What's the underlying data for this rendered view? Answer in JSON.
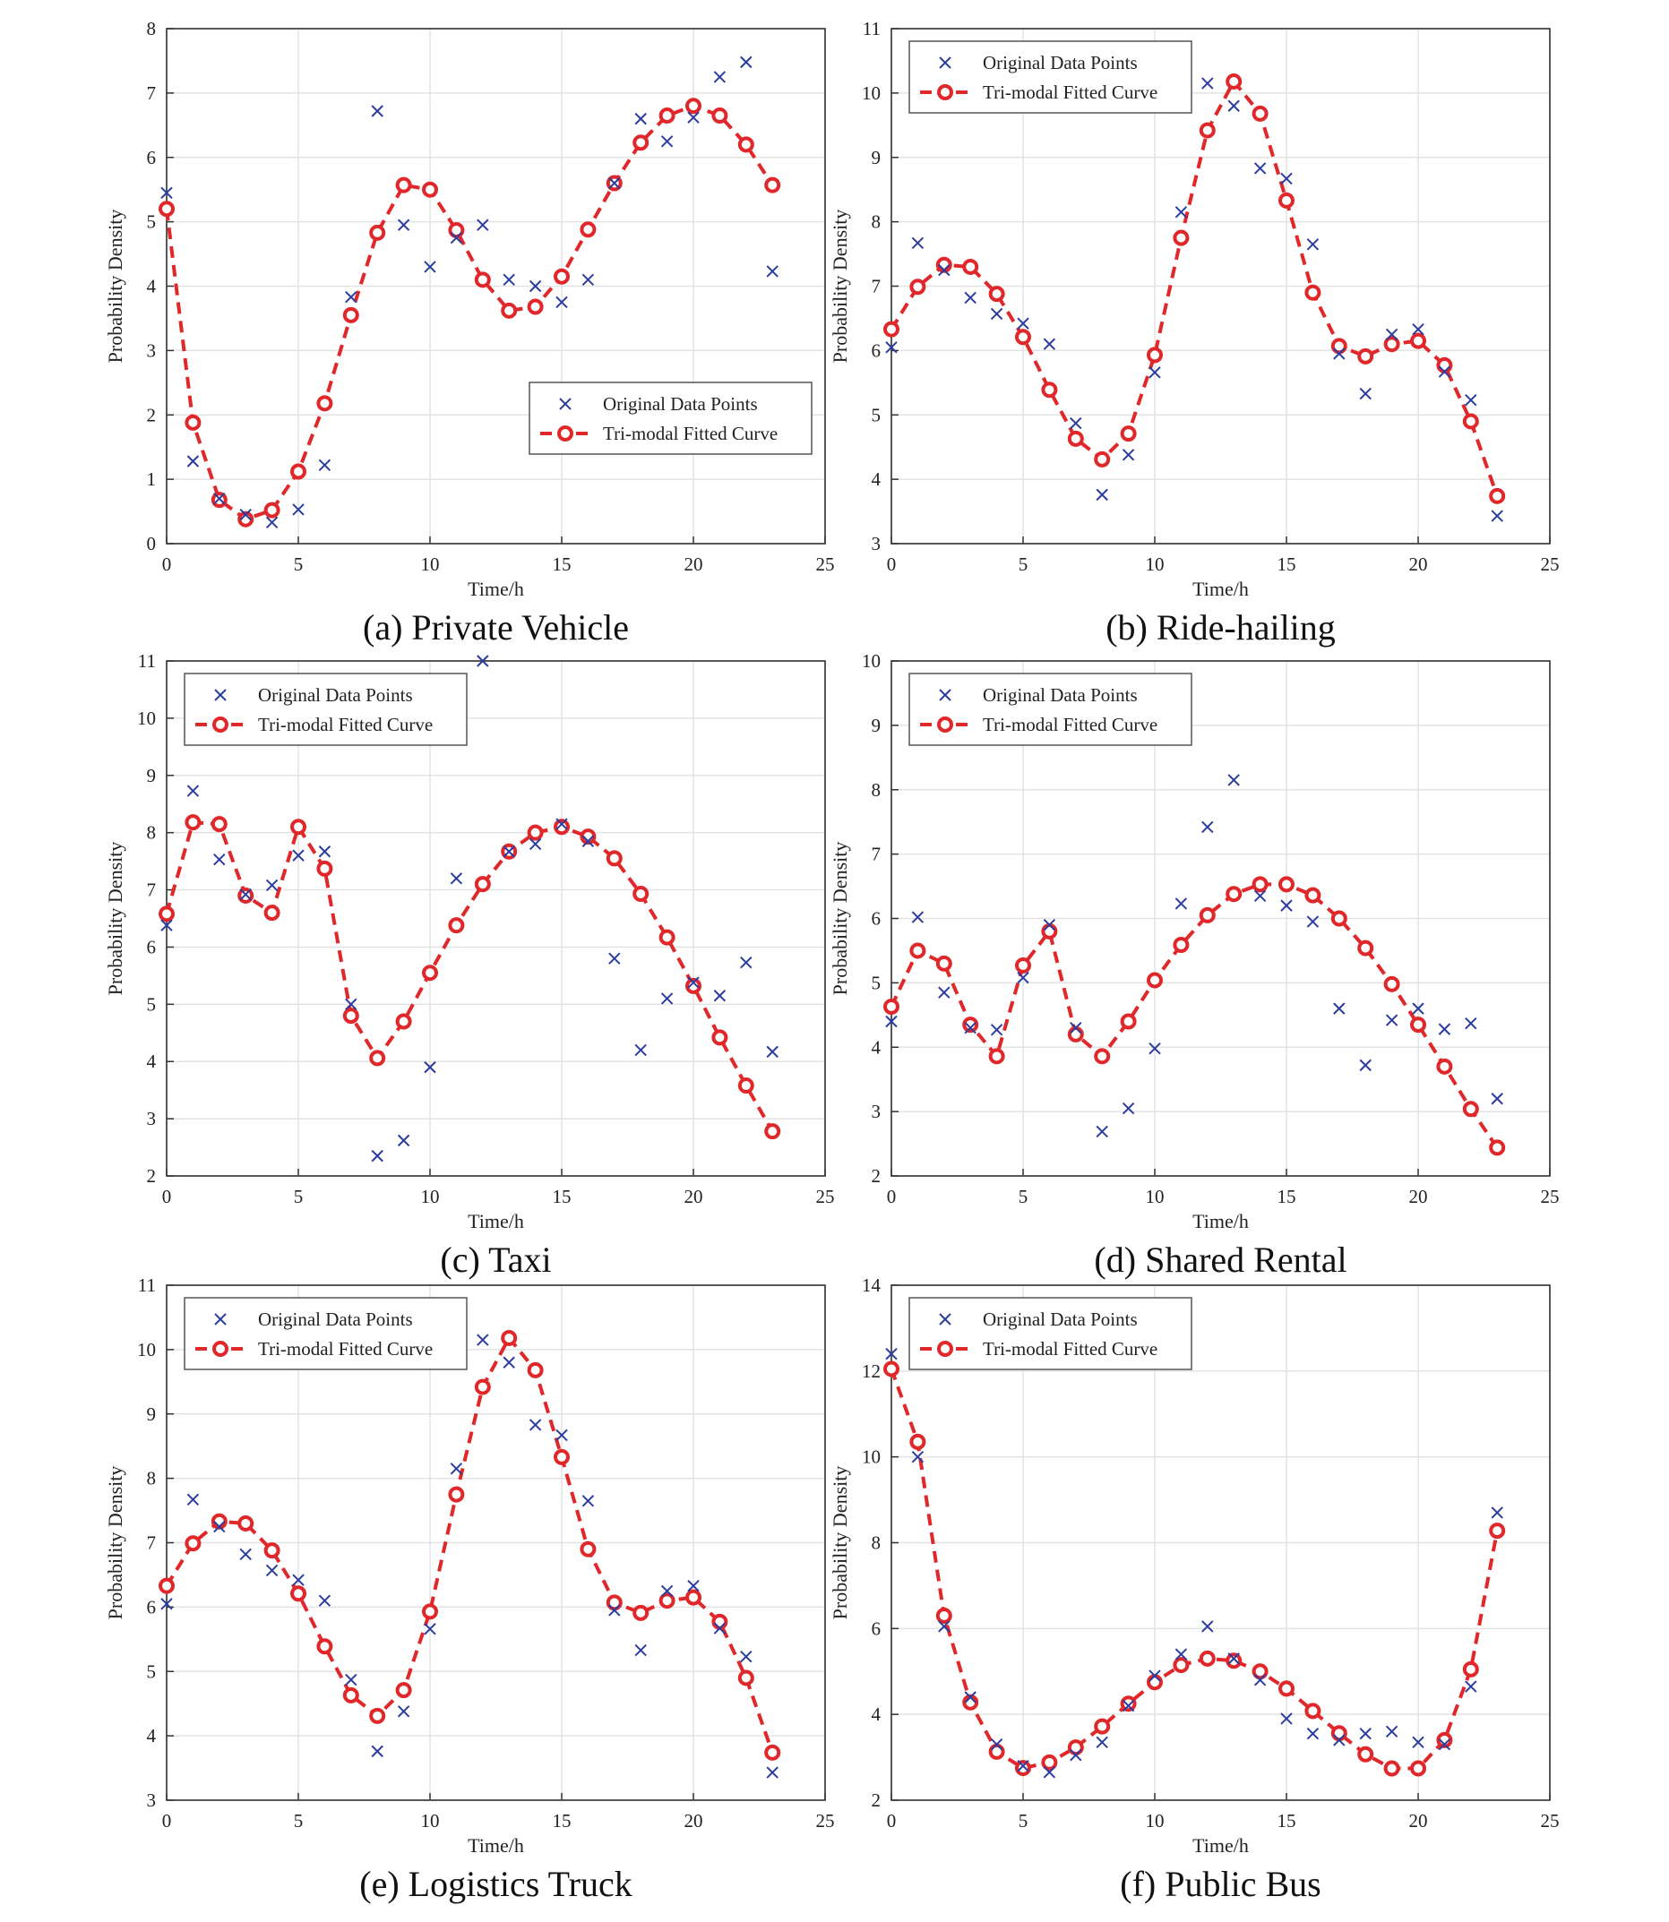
{
  "figure": {
    "colors": {
      "data_marker": "#2b3d9e",
      "fit_curve": "#e0272a",
      "grid": "#e3e3e3",
      "axes": "#333333"
    },
    "legend_labels": {
      "data": "Original Data Points",
      "fit": "Tri-modal Fitted Curve"
    }
  },
  "chart_data": [
    {
      "type": "scatter",
      "title": "(a) Private Vehicle",
      "xlabel": "Time/h",
      "ylabel": "Probability Density",
      "xlim": [
        0,
        25
      ],
      "ylim": [
        0,
        8
      ],
      "xticks": [
        "0",
        "5",
        "10",
        "15",
        "20",
        "25"
      ],
      "yticks": [
        "0",
        "1",
        "2",
        "3",
        "4",
        "5",
        "6",
        "7",
        "8"
      ],
      "grid": true,
      "legend_position": "bottom-right",
      "series": [
        {
          "name": "Original Data Points",
          "style": "x-marker",
          "x": [
            0,
            1,
            2,
            3,
            4,
            5,
            6,
            7,
            8,
            9,
            10,
            11,
            12,
            13,
            14,
            15,
            16,
            17,
            18,
            19,
            20,
            21,
            22,
            23
          ],
          "y": [
            5.45,
            1.28,
            0.7,
            0.45,
            0.33,
            0.53,
            1.22,
            3.83,
            6.72,
            4.95,
            4.3,
            4.75,
            4.95,
            4.1,
            4.0,
            3.75,
            4.1,
            5.6,
            6.6,
            6.25,
            6.62,
            7.25,
            7.48,
            4.23
          ]
        },
        {
          "name": "Tri-modal Fitted Curve",
          "style": "dashed-line-circle",
          "x": [
            0,
            1,
            2,
            3,
            4,
            5,
            6,
            7,
            8,
            9,
            10,
            11,
            12,
            13,
            14,
            15,
            16,
            17,
            18,
            19,
            20,
            21,
            22,
            23
          ],
          "y": [
            5.2,
            1.88,
            0.68,
            0.38,
            0.52,
            1.12,
            2.18,
            3.55,
            4.83,
            5.57,
            5.5,
            4.87,
            4.1,
            3.62,
            3.68,
            4.15,
            4.88,
            5.6,
            6.23,
            6.65,
            6.8,
            6.65,
            6.2,
            5.57
          ]
        }
      ]
    },
    {
      "type": "scatter",
      "title": "(b) Ride-hailing",
      "xlabel": "Time/h",
      "ylabel": "Probability Density",
      "xlim": [
        0,
        25
      ],
      "ylim": [
        3,
        11
      ],
      "xticks": [
        "0",
        "5",
        "10",
        "15",
        "20",
        "25"
      ],
      "yticks": [
        "3",
        "4",
        "5",
        "6",
        "7",
        "8",
        "9",
        "10",
        "11"
      ],
      "grid": true,
      "legend_position": "top-left",
      "series": [
        {
          "name": "Original Data Points",
          "style": "x-marker",
          "x": [
            0,
            1,
            2,
            3,
            4,
            5,
            6,
            7,
            8,
            9,
            10,
            11,
            12,
            13,
            14,
            15,
            16,
            17,
            18,
            19,
            20,
            21,
            22,
            23
          ],
          "y": [
            6.05,
            7.67,
            7.25,
            6.82,
            6.57,
            6.42,
            6.1,
            4.87,
            3.76,
            4.38,
            5.66,
            8.15,
            10.15,
            9.8,
            8.83,
            8.67,
            7.65,
            5.95,
            5.33,
            6.25,
            6.33,
            5.67,
            5.23,
            3.43
          ]
        },
        {
          "name": "Tri-modal Fitted Curve",
          "style": "dashed-line-circle",
          "x": [
            0,
            1,
            2,
            3,
            4,
            5,
            6,
            7,
            8,
            9,
            10,
            11,
            12,
            13,
            14,
            15,
            16,
            17,
            18,
            19,
            20,
            21,
            22,
            23
          ],
          "y": [
            6.33,
            6.99,
            7.33,
            7.3,
            6.88,
            6.21,
            5.39,
            4.63,
            4.31,
            4.71,
            5.93,
            7.75,
            9.42,
            10.18,
            9.68,
            8.33,
            6.9,
            6.07,
            5.91,
            6.1,
            6.15,
            5.77,
            4.9,
            3.74
          ]
        }
      ]
    },
    {
      "type": "scatter",
      "title": "(c) Taxi",
      "xlabel": "Time/h",
      "ylabel": "Probability Density",
      "xlim": [
        0,
        25
      ],
      "ylim": [
        2,
        11
      ],
      "xticks": [
        "0",
        "5",
        "10",
        "15",
        "20",
        "25"
      ],
      "yticks": [
        "2",
        "3",
        "4",
        "5",
        "6",
        "7",
        "8",
        "9",
        "10",
        "11"
      ],
      "grid": true,
      "legend_position": "top-left",
      "series": [
        {
          "name": "Original Data Points",
          "style": "x-marker",
          "x": [
            0,
            1,
            2,
            3,
            4,
            5,
            6,
            7,
            8,
            9,
            10,
            11,
            12,
            13,
            14,
            15,
            16,
            17,
            18,
            19,
            20,
            21,
            22,
            23
          ],
          "y": [
            6.38,
            8.73,
            7.53,
            6.92,
            7.08,
            7.6,
            7.67,
            5.0,
            2.35,
            2.62,
            3.9,
            7.2,
            11.0,
            7.67,
            7.8,
            8.15,
            7.85,
            5.8,
            4.2,
            5.1,
            5.38,
            5.15,
            5.73,
            4.17
          ]
        },
        {
          "name": "Tri-modal Fitted Curve",
          "style": "dashed-line-circle",
          "x": [
            0,
            1,
            2,
            3,
            4,
            5,
            6,
            7,
            8,
            9,
            10,
            11,
            12,
            13,
            14,
            15,
            16,
            17,
            18,
            19,
            20,
            21,
            22,
            23
          ],
          "y": [
            6.58,
            8.18,
            8.15,
            6.9,
            6.6,
            8.1,
            7.37,
            4.8,
            4.06,
            4.7,
            5.55,
            6.38,
            7.1,
            7.67,
            8.0,
            8.1,
            7.93,
            7.55,
            6.93,
            6.17,
            5.32,
            4.42,
            3.58,
            2.78
          ]
        }
      ]
    },
    {
      "type": "scatter",
      "title": "(d) Shared Rental",
      "xlabel": "Time/h",
      "ylabel": "Probability Density",
      "xlim": [
        0,
        25
      ],
      "ylim": [
        2,
        10
      ],
      "xticks": [
        "0",
        "5",
        "10",
        "15",
        "20",
        "25"
      ],
      "yticks": [
        "2",
        "3",
        "4",
        "5",
        "6",
        "7",
        "8",
        "9",
        "10"
      ],
      "grid": true,
      "legend_position": "top-left",
      "series": [
        {
          "name": "Original Data Points",
          "style": "x-marker",
          "x": [
            0,
            1,
            2,
            3,
            4,
            5,
            6,
            7,
            8,
            9,
            10,
            11,
            12,
            13,
            14,
            15,
            16,
            17,
            18,
            19,
            20,
            21,
            22,
            23
          ],
          "y": [
            4.4,
            6.02,
            4.85,
            4.3,
            4.27,
            5.08,
            5.9,
            4.3,
            2.69,
            3.05,
            3.98,
            6.23,
            7.42,
            8.15,
            6.35,
            6.2,
            5.95,
            4.6,
            3.72,
            4.42,
            4.6,
            4.28,
            4.37,
            3.2
          ]
        },
        {
          "name": "Tri-modal Fitted Curve",
          "style": "dashed-line-circle",
          "x": [
            0,
            1,
            2,
            3,
            4,
            5,
            6,
            7,
            8,
            9,
            10,
            11,
            12,
            13,
            14,
            15,
            16,
            17,
            18,
            19,
            20,
            21,
            22,
            23
          ],
          "y": [
            4.63,
            5.5,
            5.3,
            4.35,
            3.86,
            5.27,
            5.8,
            4.2,
            3.86,
            4.4,
            5.04,
            5.59,
            6.05,
            6.38,
            6.53,
            6.53,
            6.36,
            6.0,
            5.54,
            4.98,
            4.35,
            3.7,
            3.04,
            2.44
          ]
        }
      ]
    },
    {
      "type": "scatter",
      "title": "(e) Logistics Truck",
      "xlabel": "Time/h",
      "ylabel": "Probability Density",
      "xlim": [
        0,
        25
      ],
      "ylim": [
        3,
        11
      ],
      "xticks": [
        "0",
        "5",
        "10",
        "15",
        "20",
        "25"
      ],
      "yticks": [
        "3",
        "4",
        "5",
        "6",
        "7",
        "8",
        "9",
        "10",
        "11"
      ],
      "grid": true,
      "legend_position": "top-left",
      "series": [
        {
          "name": "Original Data Points",
          "style": "x-marker",
          "x": [
            0,
            1,
            2,
            3,
            4,
            5,
            6,
            7,
            8,
            9,
            10,
            11,
            12,
            13,
            14,
            15,
            16,
            17,
            18,
            19,
            20,
            21,
            22,
            23
          ],
          "y": [
            6.05,
            7.67,
            7.25,
            6.82,
            6.57,
            6.42,
            6.1,
            4.87,
            3.76,
            4.38,
            5.66,
            8.15,
            10.15,
            9.8,
            8.83,
            8.67,
            7.65,
            5.95,
            5.33,
            6.25,
            6.33,
            5.67,
            5.23,
            3.43
          ]
        },
        {
          "name": "Tri-modal Fitted Curve",
          "style": "dashed-line-circle",
          "x": [
            0,
            1,
            2,
            3,
            4,
            5,
            6,
            7,
            8,
            9,
            10,
            11,
            12,
            13,
            14,
            15,
            16,
            17,
            18,
            19,
            20,
            21,
            22,
            23
          ],
          "y": [
            6.33,
            6.99,
            7.33,
            7.3,
            6.88,
            6.21,
            5.39,
            4.63,
            4.31,
            4.71,
            5.93,
            7.75,
            9.42,
            10.18,
            9.68,
            8.33,
            6.9,
            6.07,
            5.91,
            6.1,
            6.15,
            5.77,
            4.9,
            3.74
          ]
        }
      ]
    },
    {
      "type": "scatter",
      "title": "(f) Public Bus",
      "xlabel": "Time/h",
      "ylabel": "Probability Density",
      "xlim": [
        0,
        25
      ],
      "ylim": [
        2,
        14
      ],
      "xticks": [
        "0",
        "5",
        "10",
        "15",
        "20",
        "25"
      ],
      "yticks": [
        "2",
        "4",
        "6",
        "8",
        "10",
        "12",
        "14"
      ],
      "grid": true,
      "legend_position": "top-left",
      "series": [
        {
          "name": "Original Data Points",
          "style": "x-marker",
          "x": [
            0,
            1,
            2,
            3,
            4,
            5,
            6,
            7,
            8,
            9,
            10,
            11,
            12,
            13,
            14,
            15,
            16,
            17,
            18,
            19,
            20,
            21,
            22,
            23
          ],
          "y": [
            12.4,
            10.0,
            6.05,
            4.4,
            3.3,
            2.8,
            2.65,
            3.05,
            3.35,
            4.2,
            4.9,
            5.4,
            6.05,
            5.3,
            4.8,
            3.9,
            3.55,
            3.4,
            3.55,
            3.6,
            3.35,
            3.3,
            4.65,
            8.7
          ]
        },
        {
          "name": "Tri-modal Fitted Curve",
          "style": "dashed-line-circle",
          "x": [
            0,
            1,
            2,
            3,
            4,
            5,
            6,
            7,
            8,
            9,
            10,
            11,
            12,
            13,
            14,
            15,
            16,
            17,
            18,
            19,
            20,
            21,
            22,
            23
          ],
          "y": [
            12.05,
            10.35,
            6.3,
            4.28,
            3.13,
            2.75,
            2.88,
            3.23,
            3.72,
            4.25,
            4.75,
            5.15,
            5.3,
            5.25,
            5.0,
            4.6,
            4.08,
            3.56,
            3.07,
            2.74,
            2.74,
            3.4,
            5.05,
            8.28
          ]
        }
      ]
    }
  ]
}
